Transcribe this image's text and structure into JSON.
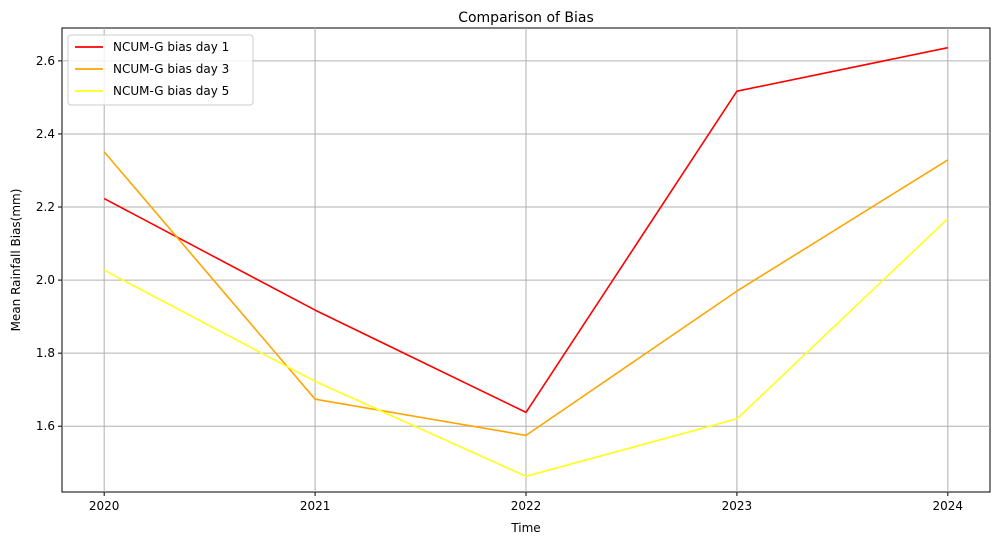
{
  "chart_data": {
    "type": "line",
    "title": "Comparison of Bias",
    "xlabel": "Time",
    "ylabel": "Mean Rainfall Bias(mm)",
    "x": [
      "2020",
      "2021",
      "2022",
      "2023",
      "2024"
    ],
    "xlim": [
      -0.2,
      4.2
    ],
    "ylim": [
      1.42,
      2.69
    ],
    "yticks": [
      "1.6",
      "1.8",
      "2.0",
      "2.2",
      "2.4",
      "2.6"
    ],
    "grid": true,
    "legend_position": "top-left",
    "series": [
      {
        "name": "NCUM-G bias day 1",
        "color": "#ff0000",
        "values": [
          2.223,
          1.918,
          1.638,
          2.517,
          2.636
        ]
      },
      {
        "name": "NCUM-G bias day 3",
        "color": "#ffa500",
        "values": [
          2.351,
          1.674,
          1.575,
          1.97,
          2.329
        ]
      },
      {
        "name": "NCUM-G bias day 5",
        "color": "#ffff1a",
        "values": [
          2.027,
          1.723,
          1.463,
          1.62,
          2.168
        ]
      }
    ]
  }
}
